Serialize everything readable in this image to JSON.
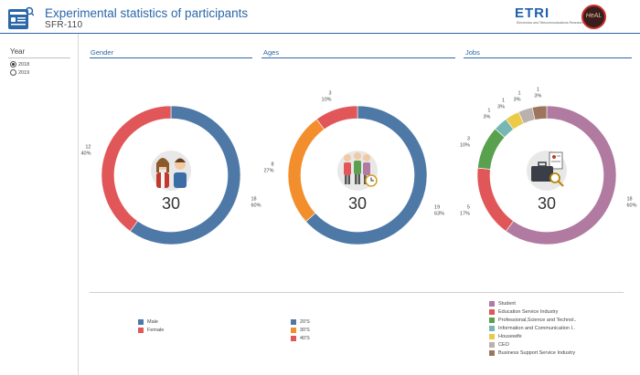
{
  "header": {
    "title": "Experimental statistics of participants",
    "subtitle": "SFR-110",
    "etri_logo_text": "ETRI",
    "etri_logo_subtext": "Electronics and Telecommunications Research Institute",
    "heal_logo_text": "HeAL",
    "app_icon": "report-document-icon"
  },
  "sidebar": {
    "year_label": "Year",
    "options": [
      {
        "label": "2018",
        "selected": true
      },
      {
        "label": "2019",
        "selected": false
      }
    ]
  },
  "panels": {
    "gender": {
      "title": "Gender",
      "center_value": "30",
      "center_icon": "couple-icon"
    },
    "ages": {
      "title": "Ages",
      "center_value": "30",
      "center_icon": "group-clock-icon"
    },
    "jobs": {
      "title": "Jobs",
      "center_value": "30",
      "center_icon": "briefcase-magnifier-icon"
    }
  },
  "chart_data": [
    {
      "type": "pie",
      "title": "Gender",
      "total": 30,
      "categories": [
        "Male",
        "Female"
      ],
      "values": [
        18,
        12
      ],
      "percent_labels": [
        "60%",
        "40%"
      ],
      "colors": [
        "#4e79a7",
        "#e15759"
      ]
    },
    {
      "type": "pie",
      "title": "Ages",
      "total": 30,
      "categories": [
        "20'S",
        "30'S",
        "40'S"
      ],
      "values": [
        19,
        8,
        3
      ],
      "percent_labels": [
        "63%",
        "27%",
        "10%"
      ],
      "colors": [
        "#4e79a7",
        "#f28e2b",
        "#e15759"
      ]
    },
    {
      "type": "pie",
      "title": "Jobs",
      "total": 30,
      "categories": [
        "Student",
        "Education Service Industry",
        "Professional,Science and Technol..",
        "Information and Communication I..",
        "Housewife",
        "CEO",
        "Business Support Service Industry"
      ],
      "values": [
        18,
        5,
        3,
        1,
        1,
        1,
        1
      ],
      "percent_labels": [
        "60%",
        "17%",
        "10%",
        "3%",
        "3%",
        "3%",
        "3%"
      ],
      "colors": [
        "#b07aa1",
        "#e15759",
        "#59a14f",
        "#76b7b2",
        "#edc948",
        "#bab0ac",
        "#9c755f"
      ]
    }
  ]
}
